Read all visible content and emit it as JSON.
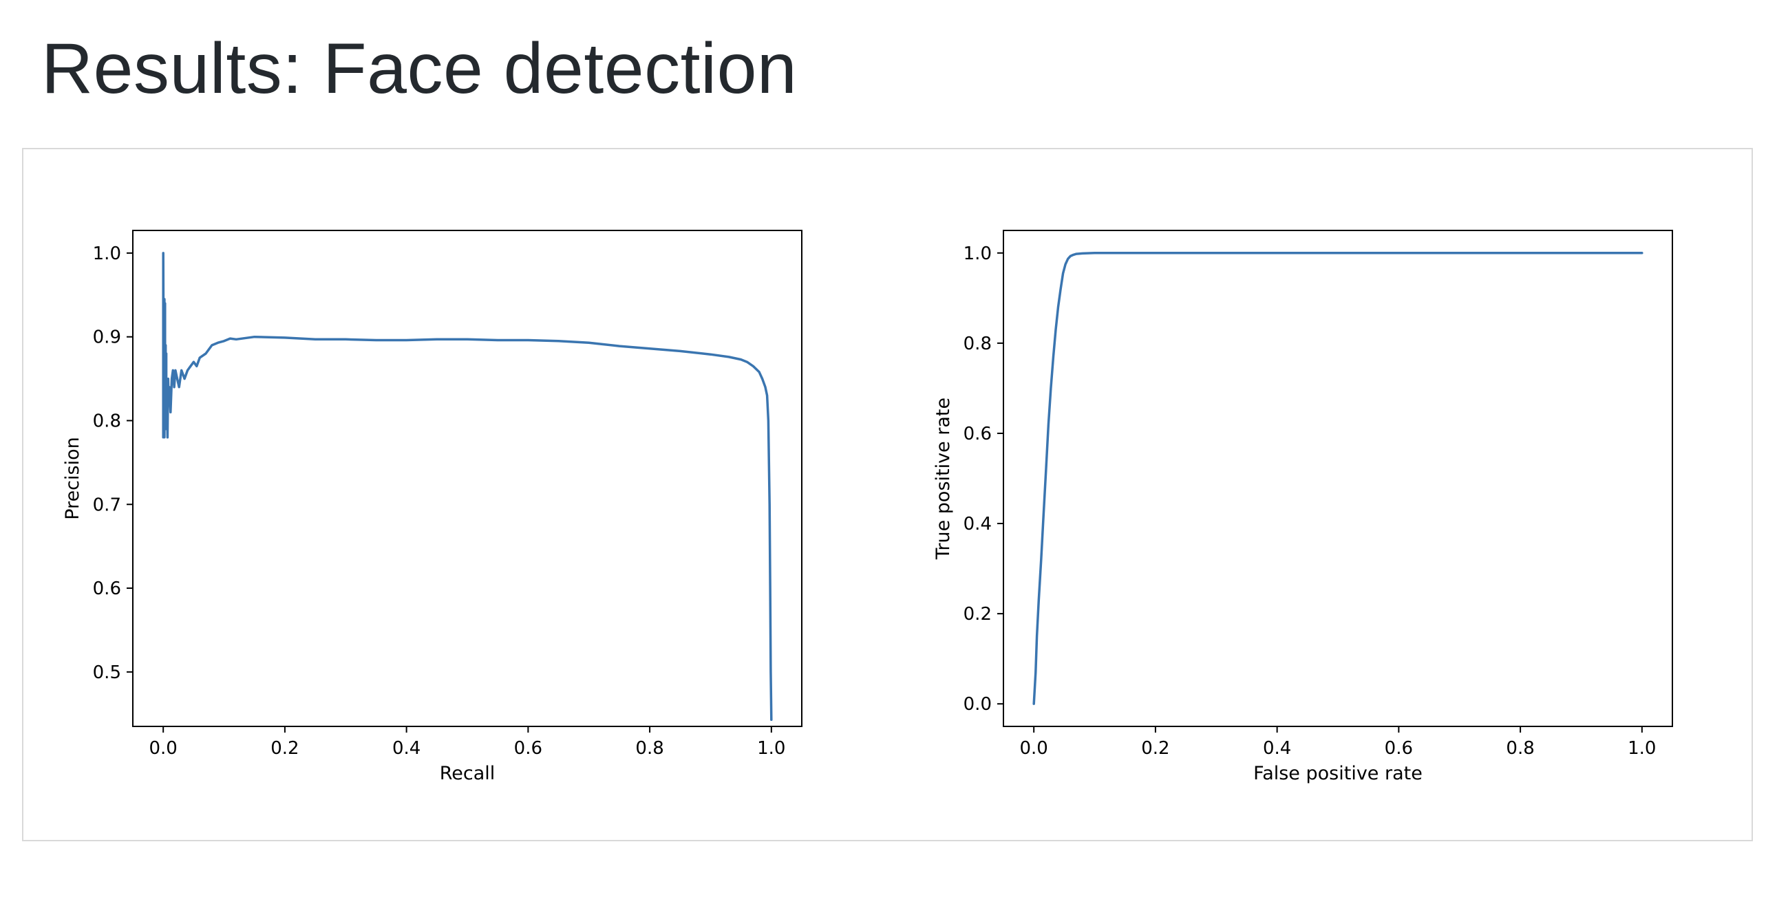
{
  "page": {
    "title": "Results: Face detection"
  },
  "chart_data": [
    {
      "type": "line",
      "xlabel": "Recall",
      "ylabel": "Precision",
      "xlim": [
        -0.05,
        1.05
      ],
      "ylim": [
        0.435,
        1.027
      ],
      "x_ticks": [
        0.0,
        0.2,
        0.4,
        0.6,
        0.8,
        1.0
      ],
      "x_tick_labels": [
        "0.0",
        "0.2",
        "0.4",
        "0.6",
        "0.8",
        "1.0"
      ],
      "y_ticks": [
        0.5,
        0.6,
        0.7,
        0.8,
        0.9,
        1.0
      ],
      "y_tick_labels": [
        "0.5",
        "0.6",
        "0.7",
        "0.8",
        "0.9",
        "1.0"
      ],
      "grid": false,
      "color": "#3a75b0",
      "series": [
        {
          "x": [
            0.0,
            0.0,
            0.001,
            0.002,
            0.002,
            0.003,
            0.003,
            0.004,
            0.004,
            0.005,
            0.005,
            0.006,
            0.007,
            0.008,
            0.009,
            0.01,
            0.012,
            0.014,
            0.016,
            0.018,
            0.02,
            0.023,
            0.026,
            0.03,
            0.035,
            0.04,
            0.045,
            0.05,
            0.055,
            0.06,
            0.07,
            0.08,
            0.09,
            0.1,
            0.11,
            0.12,
            0.15,
            0.2,
            0.25,
            0.3,
            0.35,
            0.4,
            0.45,
            0.5,
            0.55,
            0.6,
            0.65,
            0.7,
            0.75,
            0.8,
            0.85,
            0.9,
            0.93,
            0.95,
            0.96,
            0.97,
            0.98,
            0.985,
            0.99,
            0.993,
            0.995,
            0.997,
            0.998,
            0.999,
            1.0
          ],
          "y": [
            0.78,
            1.0,
            0.79,
            0.945,
            0.78,
            0.94,
            0.8,
            0.89,
            0.79,
            0.88,
            0.8,
            0.82,
            0.78,
            0.85,
            0.82,
            0.84,
            0.81,
            0.85,
            0.86,
            0.84,
            0.86,
            0.85,
            0.84,
            0.86,
            0.85,
            0.86,
            0.865,
            0.87,
            0.865,
            0.875,
            0.88,
            0.89,
            0.893,
            0.895,
            0.898,
            0.897,
            0.9,
            0.899,
            0.897,
            0.897,
            0.896,
            0.896,
            0.897,
            0.897,
            0.896,
            0.896,
            0.895,
            0.893,
            0.889,
            0.886,
            0.883,
            0.879,
            0.876,
            0.873,
            0.87,
            0.865,
            0.858,
            0.85,
            0.84,
            0.83,
            0.8,
            0.7,
            0.6,
            0.5,
            0.443
          ]
        }
      ]
    },
    {
      "type": "line",
      "xlabel": "False positive rate",
      "ylabel": "True positive rate",
      "xlim": [
        -0.05,
        1.05
      ],
      "ylim": [
        -0.05,
        1.05
      ],
      "x_ticks": [
        0.0,
        0.2,
        0.4,
        0.6,
        0.8,
        1.0
      ],
      "x_tick_labels": [
        "0.0",
        "0.2",
        "0.4",
        "0.6",
        "0.8",
        "1.0"
      ],
      "y_ticks": [
        0.0,
        0.2,
        0.4,
        0.6,
        0.8,
        1.0
      ],
      "y_tick_labels": [
        "0.0",
        "0.2",
        "0.4",
        "0.6",
        "0.8",
        "1.0"
      ],
      "grid": false,
      "color": "#3a75b0",
      "series": [
        {
          "x": [
            0.0,
            0.003,
            0.005,
            0.008,
            0.012,
            0.016,
            0.02,
            0.024,
            0.028,
            0.032,
            0.036,
            0.04,
            0.044,
            0.048,
            0.052,
            0.056,
            0.06,
            0.065,
            0.07,
            0.08,
            0.1,
            0.2,
            0.4,
            0.6,
            0.8,
            1.0
          ],
          "y": [
            0.0,
            0.07,
            0.15,
            0.23,
            0.32,
            0.42,
            0.52,
            0.62,
            0.7,
            0.77,
            0.83,
            0.88,
            0.92,
            0.955,
            0.975,
            0.987,
            0.993,
            0.996,
            0.998,
            0.999,
            1.0,
            1.0,
            1.0,
            1.0,
            1.0,
            1.0
          ]
        }
      ]
    }
  ]
}
